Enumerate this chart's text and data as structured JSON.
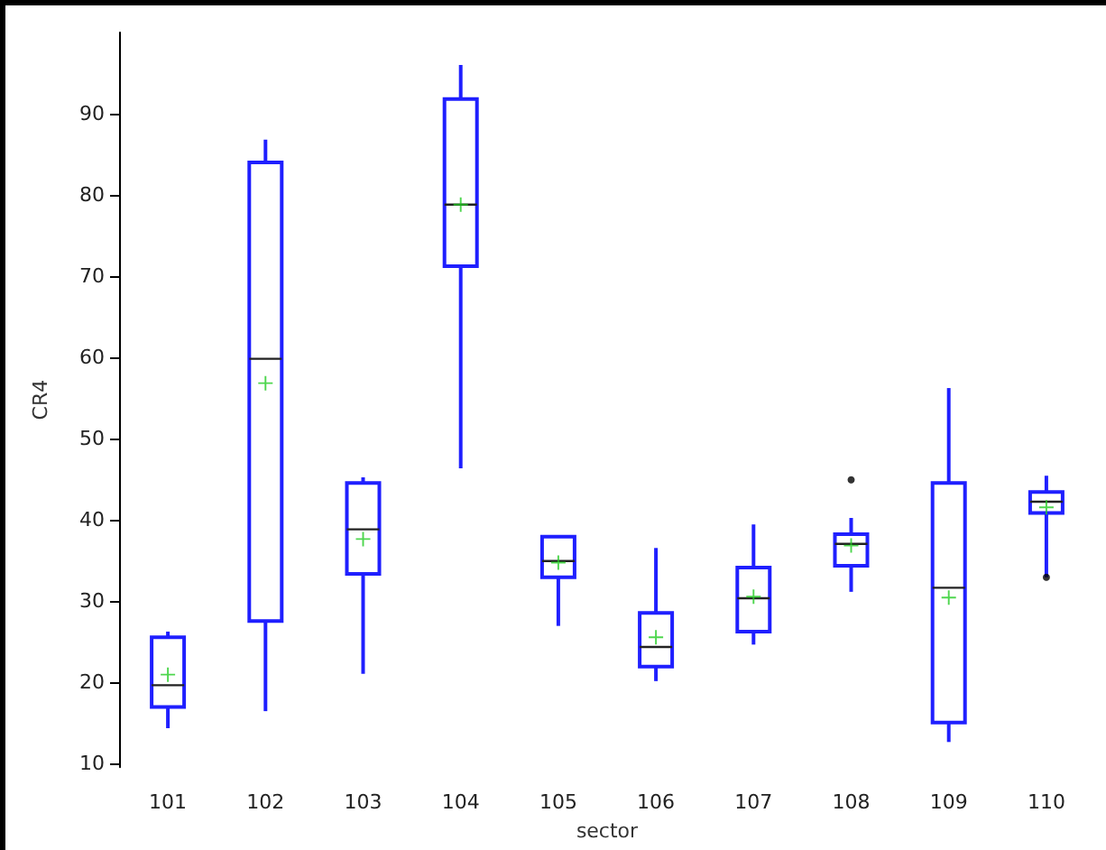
{
  "chart_data": {
    "type": "box",
    "xlabel": "sector",
    "ylabel": "CR4",
    "categories": [
      "101",
      "102",
      "103",
      "104",
      "105",
      "106",
      "107",
      "108",
      "109",
      "110"
    ],
    "color": "#1f1fff",
    "ylim": [
      9.5,
      100
    ],
    "yticks": [
      10,
      20,
      30,
      40,
      50,
      60,
      70,
      80,
      90
    ],
    "grid": false,
    "boxes": [
      {
        "low": 14.3,
        "q1": 16.9,
        "median": 19.6,
        "q3": 25.5,
        "high": 26.2,
        "mean": 20.9
      },
      {
        "low": 16.4,
        "q1": 27.5,
        "median": 59.8,
        "q3": 84.0,
        "high": 86.8,
        "mean": 56.8
      },
      {
        "low": 21.0,
        "q1": 33.3,
        "median": 38.8,
        "q3": 44.5,
        "high": 45.2,
        "mean": 37.6
      },
      {
        "low": 46.3,
        "q1": 71.2,
        "median": 78.8,
        "q3": 91.8,
        "high": 96.0,
        "mean": 78.8
      },
      {
        "low": 26.9,
        "q1": 32.9,
        "median": 34.9,
        "q3": 37.9,
        "high": 37.9,
        "mean": 34.7
      },
      {
        "low": 20.1,
        "q1": 21.9,
        "median": 24.3,
        "q3": 28.5,
        "high": 36.5,
        "mean": 25.5
      },
      {
        "low": 24.6,
        "q1": 26.2,
        "median": 30.3,
        "q3": 34.1,
        "high": 39.4,
        "mean": 30.5
      },
      {
        "low": 31.1,
        "q1": 34.3,
        "median": 37.0,
        "q3": 38.2,
        "high": 40.2,
        "mean": 36.8,
        "outliers": [
          44.9
        ]
      },
      {
        "low": 12.6,
        "q1": 15.0,
        "median": 31.6,
        "q3": 44.5,
        "high": 56.2,
        "mean": 30.4
      },
      {
        "low": 32.9,
        "q1": 40.8,
        "median": 42.2,
        "q3": 43.4,
        "high": 45.4,
        "mean": 41.5,
        "outliers": [
          32.9
        ]
      }
    ]
  }
}
